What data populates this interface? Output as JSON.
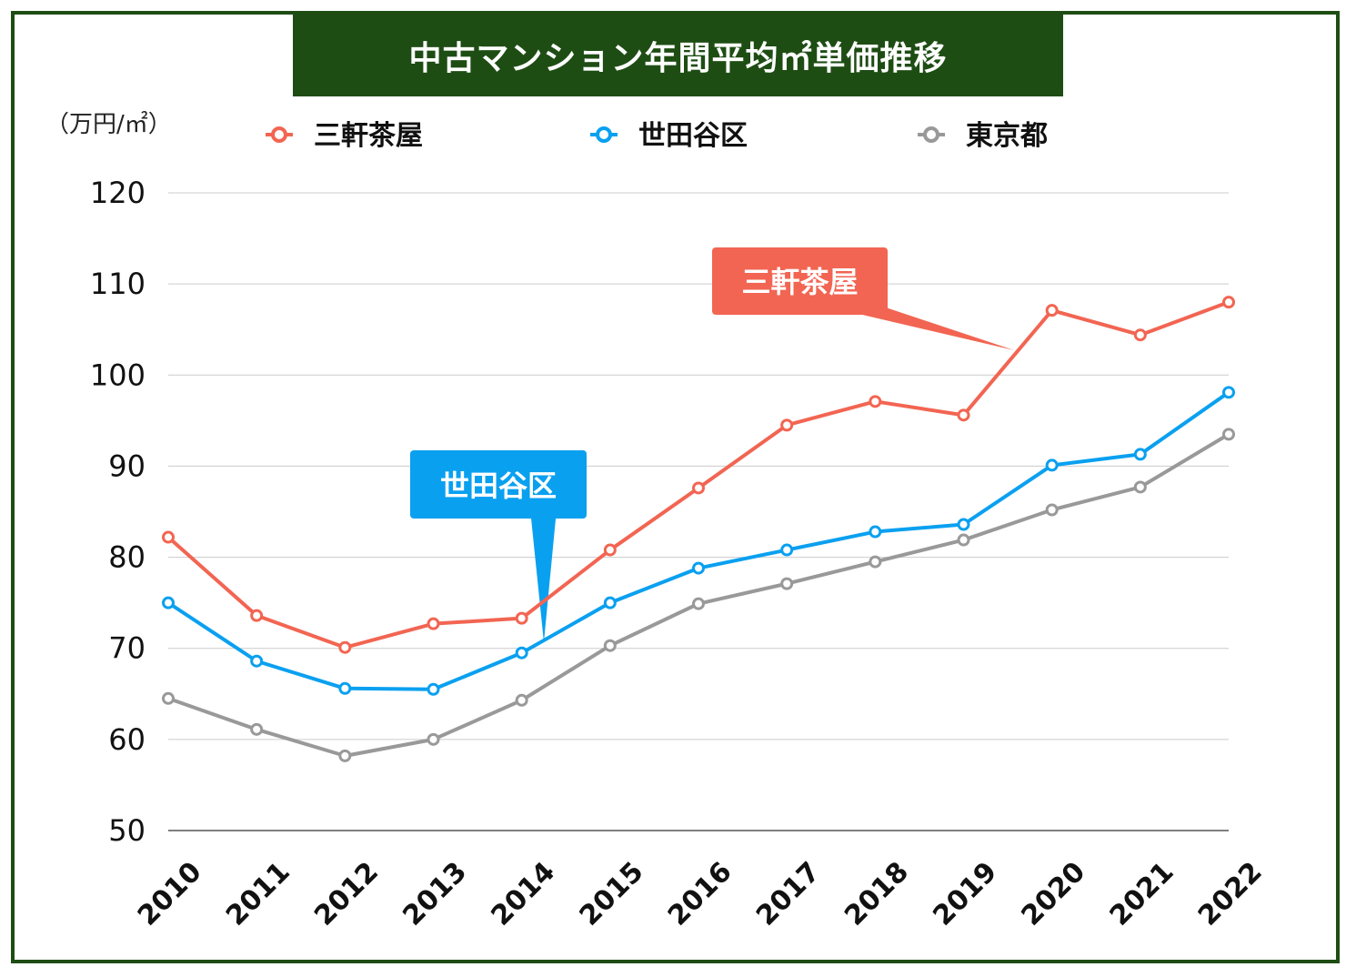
{
  "chart_data": {
    "type": "line",
    "title": "中古マンション年間平均㎡単価推移",
    "ylabel": "（万円/㎡）",
    "xlabel": "",
    "ylim": [
      50,
      120
    ],
    "yticks": [
      50,
      60,
      70,
      80,
      90,
      100,
      110,
      120
    ],
    "grid": true,
    "legend_position": "top",
    "x": [
      "2010",
      "2011",
      "2012",
      "2013",
      "2014",
      "2015",
      "2016",
      "2017",
      "2018",
      "2019",
      "2020",
      "2021",
      "2022"
    ],
    "series": [
      {
        "name": "三軒茶屋",
        "color": "#f26552",
        "values": [
          82.2,
          73.6,
          70.1,
          72.7,
          73.3,
          80.8,
          87.6,
          94.5,
          97.1,
          95.6,
          107.1,
          104.4,
          108.0
        ]
      },
      {
        "name": "世田谷区",
        "color": "#0aa0f0",
        "values": [
          75.0,
          68.6,
          65.6,
          65.5,
          69.5,
          75.0,
          78.8,
          80.8,
          82.8,
          83.6,
          90.1,
          91.3,
          98.1
        ]
      },
      {
        "name": "東京都",
        "color": "#999999",
        "values": [
          64.5,
          61.1,
          58.2,
          60.0,
          64.3,
          70.3,
          74.9,
          77.1,
          79.5,
          81.9,
          85.2,
          87.7,
          93.5
        ]
      }
    ],
    "annotations": [
      {
        "text": "三軒茶屋",
        "color": "#f26552"
      },
      {
        "text": "世田谷区",
        "color": "#0aa0f0"
      }
    ]
  }
}
